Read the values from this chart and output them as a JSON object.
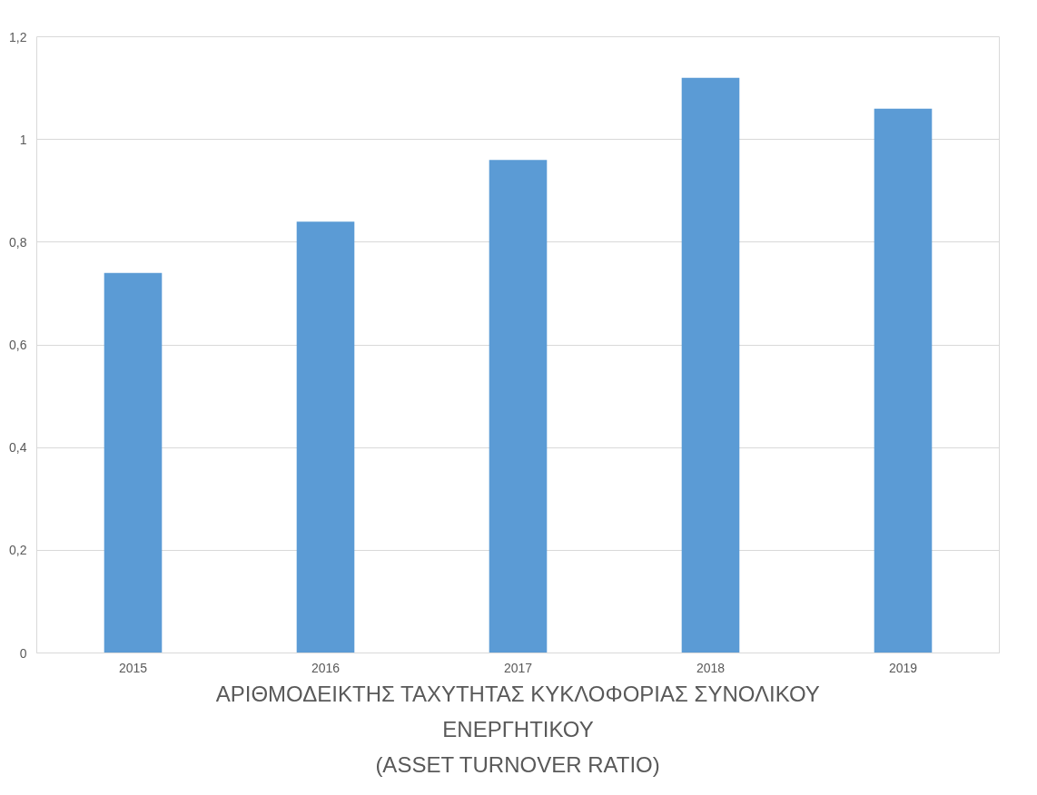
{
  "chart_data": {
    "type": "bar",
    "title": "ΑΡΙΘΜΟΔΕΙΚΤΗΣ ΤΑΧΥΤΗΤΑΣ ΚΥΚΛΟΦΟΡΙΑΣ ΣΥΝΟΛΙΚΟΥ\nΕΝΕΡΓΗΤΙΚΟΥ\n(ASSET TURNOVER RATIO)",
    "categories": [
      "2015",
      "2016",
      "2017",
      "2018",
      "2019"
    ],
    "values": [
      0.74,
      0.84,
      0.96,
      1.12,
      1.06
    ],
    "color": "#5b9bd5",
    "ylim": [
      0,
      1.2
    ],
    "yticks": [
      {
        "value": 0,
        "label": "0"
      },
      {
        "value": 0.2,
        "label": "0,2"
      },
      {
        "value": 0.4,
        "label": "0,4"
      },
      {
        "value": 0.6,
        "label": "0,6"
      },
      {
        "value": 0.8,
        "label": "0,8"
      },
      {
        "value": 1,
        "label": "1"
      },
      {
        "value": 1.2,
        "label": "1,2"
      }
    ],
    "grid": "y"
  }
}
